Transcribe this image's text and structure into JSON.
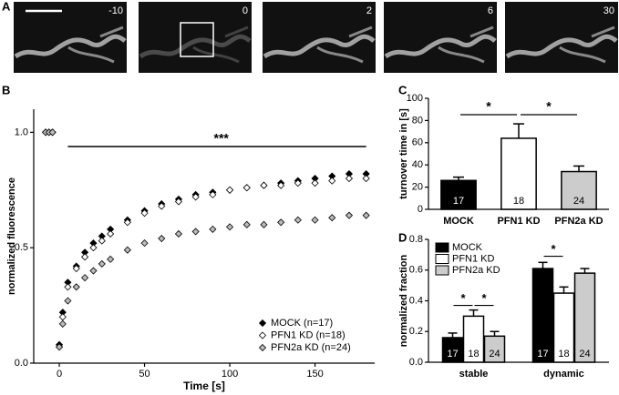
{
  "panels": [
    "A",
    "B",
    "C",
    "D"
  ],
  "panel_a": {
    "frame_labels": [
      "-10",
      "0",
      "2",
      "6",
      "30"
    ]
  },
  "chart_data": [
    {
      "type": "scatter",
      "x_label": "Time [s]",
      "y_label": "normalized fluorescence",
      "annotation": "***",
      "x": [
        -8,
        -6,
        -4,
        0,
        2,
        5,
        10,
        15,
        20,
        25,
        30,
        40,
        50,
        60,
        70,
        80,
        90,
        100,
        110,
        120,
        130,
        140,
        150,
        160,
        170,
        180
      ],
      "series": [
        {
          "name": "MOCK (n=17)",
          "color": "#000000",
          "values": [
            1.0,
            1.0,
            1.0,
            0.08,
            0.22,
            0.35,
            0.42,
            0.48,
            0.52,
            0.55,
            0.58,
            0.62,
            0.66,
            0.69,
            0.71,
            0.73,
            0.74,
            0.75,
            0.76,
            0.77,
            0.78,
            0.79,
            0.8,
            0.81,
            0.82,
            0.82
          ]
        },
        {
          "name": "PFN1 KD (n=18)",
          "color": "#ffffff",
          "values": [
            1.0,
            1.0,
            1.0,
            0.07,
            0.2,
            0.33,
            0.41,
            0.46,
            0.5,
            0.53,
            0.56,
            0.61,
            0.65,
            0.68,
            0.7,
            0.72,
            0.73,
            0.75,
            0.76,
            0.77,
            0.77,
            0.78,
            0.78,
            0.79,
            0.8,
            0.8
          ]
        },
        {
          "name": "PFN2a KD (n=24)",
          "color": "#bbbbbb",
          "values": [
            1.0,
            1.0,
            1.0,
            0.07,
            0.17,
            0.27,
            0.33,
            0.37,
            0.4,
            0.43,
            0.45,
            0.49,
            0.52,
            0.54,
            0.56,
            0.57,
            0.58,
            0.59,
            0.6,
            0.6,
            0.61,
            0.62,
            0.62,
            0.63,
            0.64,
            0.64
          ]
        }
      ],
      "xlim": [
        -15,
        185
      ],
      "ylim": [
        0,
        1.1
      ],
      "xticks": [
        0,
        50,
        100,
        150
      ],
      "yticks": [
        {
          "value": 0,
          "label": "0.0"
        },
        0.5,
        {
          "value": 1,
          "label": "1.0"
        }
      ],
      "legend": "lower right"
    },
    {
      "type": "bar",
      "y_label": "turnover time in [s]",
      "categories": [
        "MOCK",
        "PFN1 KD",
        "PFN2a KD"
      ],
      "values": [
        26,
        64,
        34
      ],
      "errors": [
        3,
        13,
        5
      ],
      "colors": [
        "#000000",
        "#ffffff",
        "#cccccc"
      ],
      "n_labels": [
        "17",
        "18",
        "24"
      ],
      "significance": [
        "*",
        "*"
      ],
      "ylim": [
        0,
        100
      ],
      "yticks": [
        0,
        20,
        40,
        60,
        80,
        100
      ]
    },
    {
      "type": "grouped_bar",
      "y_label": "normalized fraction",
      "categories": [
        "stable",
        "dynamic"
      ],
      "series": [
        {
          "name": "MOCK",
          "color": "#000000",
          "values": [
            0.16,
            0.61
          ],
          "errors": [
            0.03,
            0.04
          ],
          "n_label": "17"
        },
        {
          "name": "PFN1 KD",
          "color": "#ffffff",
          "values": [
            0.3,
            0.45
          ],
          "errors": [
            0.04,
            0.04
          ],
          "n_label": "18"
        },
        {
          "name": "PFN2a KD",
          "color": "#cccccc",
          "values": [
            0.17,
            0.58
          ],
          "errors": [
            0.03,
            0.03
          ],
          "n_label": "24"
        }
      ],
      "significance": [
        "*",
        "*",
        "*"
      ],
      "ylim": [
        0,
        0.8
      ],
      "yticks": [
        {
          "value": 0,
          "label": "0.0"
        },
        0.2,
        0.4,
        0.6,
        0.8
      ],
      "legend": "upper left"
    }
  ]
}
